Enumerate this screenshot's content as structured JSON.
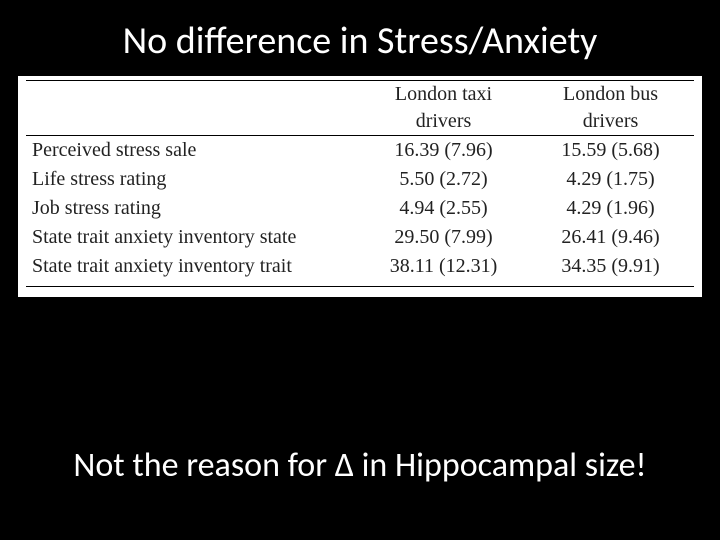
{
  "title": "No difference in Stress/Anxiety",
  "table": {
    "columns": [
      {
        "line1": "",
        "line2": ""
      },
      {
        "line1": "London taxi",
        "line2": "drivers"
      },
      {
        "line1": "London bus",
        "line2": "drivers"
      }
    ],
    "rows": [
      {
        "label": "Perceived stress sale",
        "a": "16.39 (7.96)",
        "b": "15.59 (5.68)"
      },
      {
        "label": "Life stress rating",
        "a": "5.50 (2.72)",
        "b": "4.29 (1.75)"
      },
      {
        "label": "Job stress rating",
        "a": "4.94 (2.55)",
        "b": "4.29 (1.96)"
      },
      {
        "label": "State trait anxiety inventory state",
        "a": "29.50 (7.99)",
        "b": "26.41 (9.46)"
      },
      {
        "label": "State trait anxiety inventory trait",
        "a": "38.11 (12.31)",
        "b": "34.35 (9.91)"
      }
    ]
  },
  "footer": "Not the reason for Δ in Hippocampal size!",
  "colors": {
    "background": "#000000",
    "text_on_dark": "#ffffff",
    "table_bg": "#ffffff",
    "table_text": "#222222"
  }
}
